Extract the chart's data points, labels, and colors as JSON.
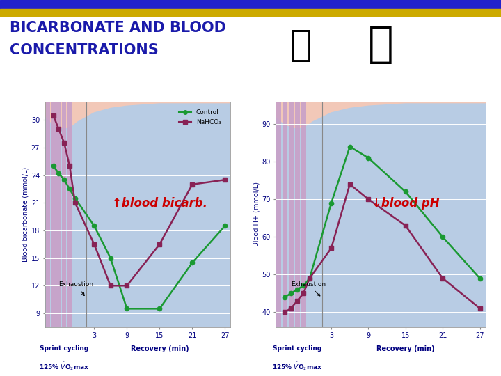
{
  "title_line1": "BICARBONATE AND BLOOD",
  "title_line2": "CONCENTRATIONS",
  "title_color": "#1a1aaa",
  "bg_color": "#ffffff",
  "header_bar_blue": "#2222cc",
  "header_bar_gold": "#ccaa00",
  "chart_outer_bg": "#f2c8b8",
  "plot_bg_color": "#b8cce4",
  "sprint_bar_color": "#c8a0c8",
  "left_chart": {
    "ylabel": "Blood bicarbonate (mmol/L)",
    "yticks": [
      9,
      12,
      15,
      18,
      21,
      24,
      27,
      30
    ],
    "ylim": [
      7.5,
      32
    ],
    "xticks_recovery": [
      3,
      9,
      15,
      21,
      27
    ],
    "annotation_text": "↑blood bicarb.",
    "annotation_color": "#cc0000",
    "exhaustion_text": "Exhaustion",
    "control_x": [
      -4.5,
      -3.5,
      -2.5,
      -1.5,
      -0.5,
      3,
      6,
      9,
      15,
      21,
      27
    ],
    "control_y": [
      25.0,
      24.2,
      23.5,
      22.5,
      21.5,
      18.5,
      15.0,
      9.5,
      9.5,
      14.5,
      18.5
    ],
    "nahco3_x": [
      -4.5,
      -3.5,
      -2.5,
      -1.5,
      -0.5,
      3,
      6,
      9,
      15,
      21,
      27
    ],
    "nahco3_y": [
      30.5,
      29.0,
      27.5,
      25.0,
      21.0,
      16.5,
      12.0,
      12.0,
      16.5,
      23.0,
      23.5
    ],
    "control_color": "#1a9932",
    "nahco3_color": "#882255"
  },
  "right_chart": {
    "ylabel": "Blood H+ (mmol/L)",
    "yticks": [
      40,
      50,
      60,
      70,
      80,
      90
    ],
    "ylim": [
      36,
      96
    ],
    "xticks_recovery": [
      3,
      9,
      15,
      21,
      27
    ],
    "annotation_text": "↓blood pH",
    "annotation_color": "#cc0000",
    "exhaustion_text": "Exhaustion",
    "control_x": [
      -4.5,
      -3.5,
      -2.5,
      -1.5,
      -0.5,
      3,
      6,
      9,
      15,
      21,
      27
    ],
    "control_y": [
      44,
      45,
      46,
      47,
      49,
      69,
      84,
      81,
      72,
      60,
      49
    ],
    "nahco3_x": [
      -4.5,
      -3.5,
      -2.5,
      -1.5,
      -0.5,
      3,
      6,
      9,
      15,
      21,
      27
    ],
    "nahco3_y": [
      40,
      41,
      43,
      45,
      49,
      57,
      74,
      70,
      63,
      49,
      41
    ],
    "control_color": "#1a9932",
    "nahco3_color": "#882255"
  },
  "legend_control": "Control",
  "legend_nahco3": "NaHCO₃"
}
